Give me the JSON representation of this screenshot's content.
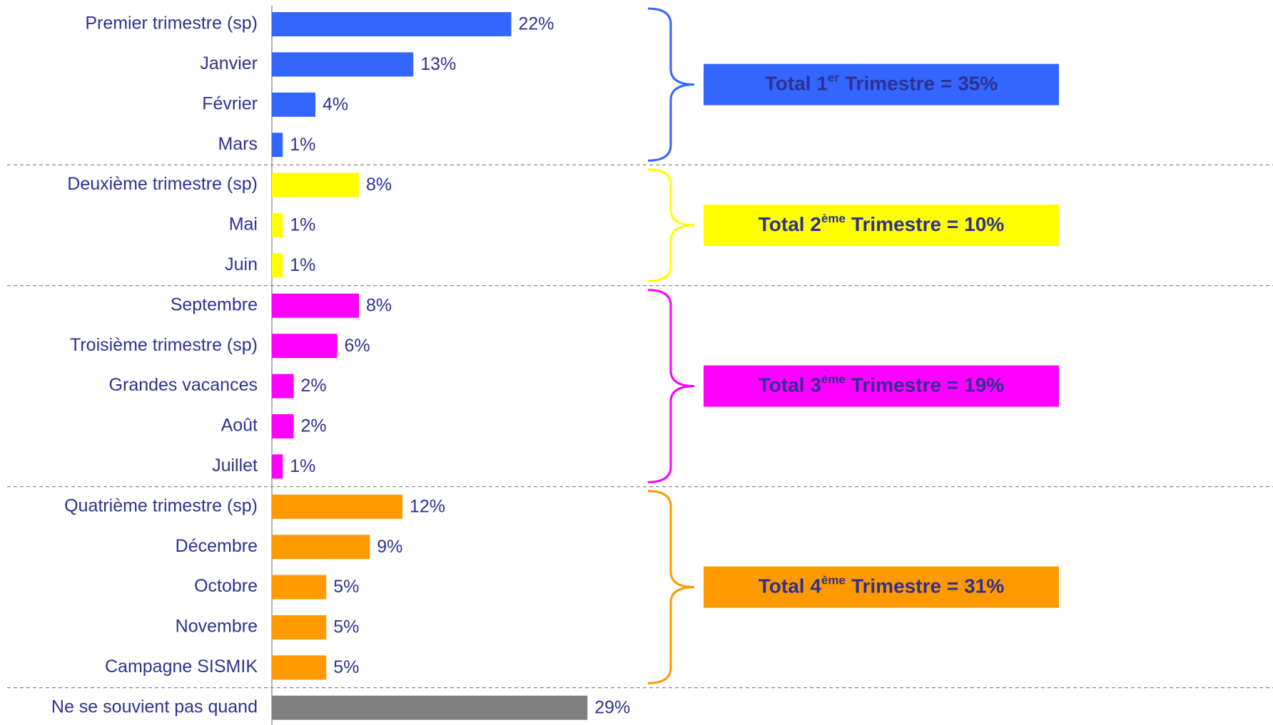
{
  "chart_data": {
    "type": "bar",
    "orientation": "horizontal",
    "xlim": [
      0,
      40
    ],
    "groups": [
      {
        "color": "#3366ff",
        "categories": [
          "Premier trimestre (sp)",
          "Janvier",
          "Février",
          "Mars"
        ],
        "values": [
          22,
          13,
          4,
          1
        ],
        "value_labels": [
          "22%",
          "13%",
          "4%",
          "1%"
        ],
        "total": {
          "label": "Total 1",
          "superscript": "er",
          "text": "Trimestre =",
          "value": 35,
          "value_label": "35%"
        }
      },
      {
        "color": "#ffff00",
        "categories": [
          "Deuxième trimestre (sp)",
          "Mai",
          "Juin"
        ],
        "values": [
          8,
          1,
          1
        ],
        "value_labels": [
          "8%",
          "1%",
          "1%"
        ],
        "total": {
          "label": "Total 2",
          "superscript": "ème",
          "text": "Trimestre =",
          "value": 10,
          "value_label": "10%"
        }
      },
      {
        "color": "#ff00ff",
        "categories": [
          "Septembre",
          "Troisième trimestre (sp)",
          "Grandes vacances",
          "Août",
          "Juillet"
        ],
        "values": [
          8,
          6,
          2,
          2,
          1
        ],
        "value_labels": [
          "8%",
          "6%",
          "2%",
          "2%",
          "1%"
        ],
        "total": {
          "label": "Total 3",
          "superscript": "ème",
          "text": "Trimestre =",
          "value": 19,
          "value_label": "19%"
        }
      },
      {
        "color": "#ff9900",
        "categories": [
          "Quatrième trimestre (sp)",
          "Décembre",
          "Octobre",
          "Novembre",
          "Campagne SISMIK"
        ],
        "values": [
          12,
          9,
          5,
          5,
          5
        ],
        "value_labels": [
          "12%",
          "9%",
          "5%",
          "5%",
          "5%"
        ],
        "total": {
          "label": "Total 4",
          "superscript": "ème",
          "text": "Trimestre =",
          "value": 31,
          "value_label": "31%"
        }
      },
      {
        "color": "#808080",
        "categories": [
          "Ne se souvient pas quand"
        ],
        "values": [
          29
        ],
        "value_labels": [
          "29%"
        ]
      }
    ]
  }
}
